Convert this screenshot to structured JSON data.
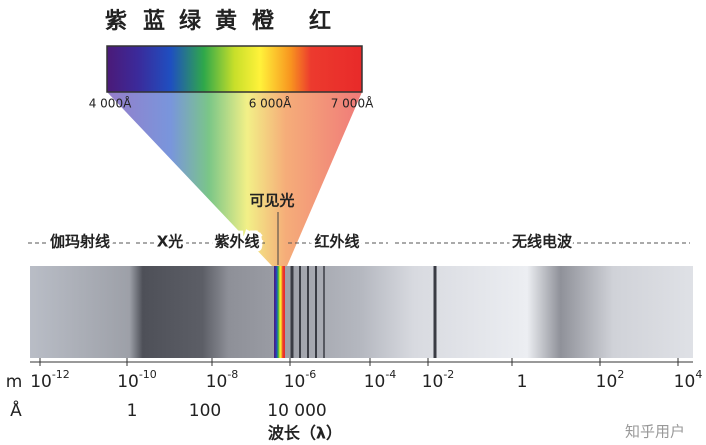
{
  "color_names": [
    "紫",
    "蓝",
    "绿",
    "黄",
    "橙",
    "红"
  ],
  "visible_wavelengths": [
    "4 000Å",
    "6 000Å",
    "7 000Å"
  ],
  "visible_light_label": "可见光",
  "regions": [
    "伽玛射线",
    "X光",
    "紫外线",
    "红外线",
    "无线电波"
  ],
  "meter_unit": "m",
  "meter_ticks": [
    {
      "base": "10",
      "exp": "-12"
    },
    {
      "base": "10",
      "exp": "-10"
    },
    {
      "base": "10",
      "exp": "-8"
    },
    {
      "base": "10",
      "exp": "-6"
    },
    {
      "base": "10",
      "exp": "-4"
    },
    {
      "base": "10",
      "exp": "-2"
    },
    {
      "base": "1"
    },
    {
      "base": "10",
      "exp": "2"
    },
    {
      "base": "10",
      "exp": "4"
    }
  ],
  "angstrom_unit": "Å",
  "angstrom_ticks": [
    "1",
    "100",
    "10 000"
  ],
  "axis_title": "波长（λ）",
  "watermark": "知乎用户"
}
